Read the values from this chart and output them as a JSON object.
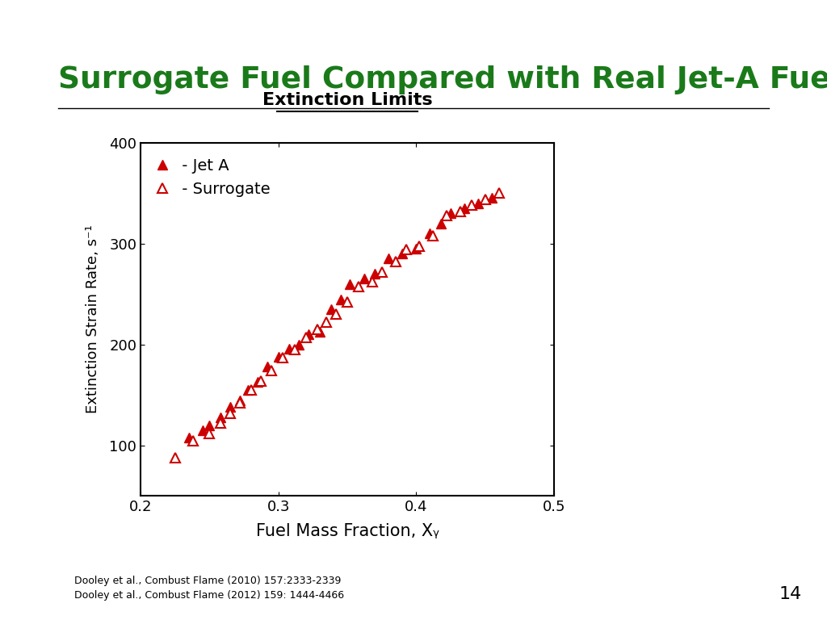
{
  "title": "Surrogate Fuel Compared with Real Jet-A Fuel",
  "plot_title": "Extinction Limits",
  "xlabel": "Fuel Mass Fraction, Xᵧ",
  "ylabel": "Extinction Strain Rate, s⁻¹",
  "xlim": [
    0.2,
    0.5
  ],
  "ylim": [
    50,
    400
  ],
  "xticks": [
    0.2,
    0.3,
    0.4,
    0.5
  ],
  "yticks": [
    100,
    200,
    300,
    400
  ],
  "title_color": "#1a7a1a",
  "marker_color": "#cc0000",
  "jet_a_x": [
    0.235,
    0.245,
    0.25,
    0.258,
    0.265,
    0.272,
    0.278,
    0.285,
    0.292,
    0.3,
    0.308,
    0.315,
    0.322,
    0.33,
    0.338,
    0.345,
    0.352,
    0.362,
    0.37,
    0.38,
    0.39,
    0.4,
    0.41,
    0.418,
    0.425,
    0.435,
    0.445,
    0.455
  ],
  "jet_a_y": [
    108,
    115,
    120,
    128,
    138,
    145,
    155,
    163,
    178,
    188,
    196,
    200,
    210,
    213,
    235,
    245,
    260,
    265,
    270,
    285,
    290,
    295,
    310,
    320,
    330,
    335,
    340,
    345
  ],
  "surrogate_x": [
    0.225,
    0.238,
    0.25,
    0.258,
    0.265,
    0.272,
    0.28,
    0.287,
    0.295,
    0.303,
    0.312,
    0.32,
    0.328,
    0.335,
    0.342,
    0.35,
    0.358,
    0.368,
    0.375,
    0.385,
    0.393,
    0.402,
    0.412,
    0.422,
    0.432,
    0.44,
    0.45,
    0.46
  ],
  "surrogate_y": [
    88,
    105,
    112,
    122,
    132,
    142,
    155,
    164,
    174,
    187,
    195,
    207,
    215,
    222,
    230,
    242,
    257,
    262,
    272,
    282,
    294,
    297,
    308,
    328,
    332,
    338,
    344,
    350
  ],
  "footer_text1": "Dooley et al., Combust Flame (2010) 157:2333-2339",
  "footer_text2": "Dooley et al., Combust Flame (2012) 159: 1444-4466",
  "page_number": "14"
}
